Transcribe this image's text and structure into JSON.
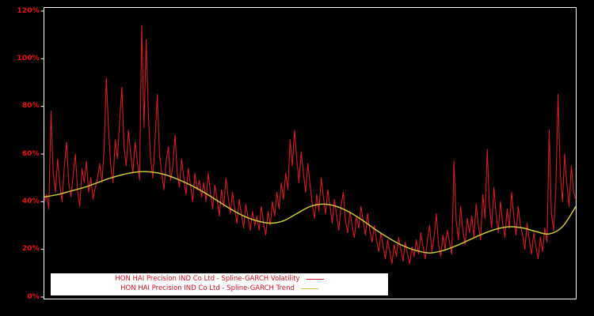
{
  "window": {
    "background": "#000000"
  },
  "chart_data": {
    "type": "line",
    "title": "",
    "xlabel": "",
    "ylabel": "",
    "ylim": [
      0,
      120
    ],
    "grid": false,
    "x_tick_labels": [],
    "y_tick_values": [
      0,
      20,
      40,
      60,
      80,
      100,
      120
    ],
    "y_tick_labels": [
      "0%",
      "20%",
      "40%",
      "60%",
      "80%",
      "100%",
      "120%"
    ],
    "colors": {
      "background": "#000000",
      "plot_border": "#ffffff",
      "axis_label": "#ee1111"
    },
    "legend": {
      "position": "bottom-inside",
      "background": "#ffffff",
      "text_color": "#cc1122"
    },
    "series": [
      {
        "name": "HON HAI Precision IND Co Ltd - Spline-GARCH Volatility",
        "color": "#d41e26",
        "style": "jagged",
        "values": [
          40,
          43,
          37,
          78,
          52,
          44,
          58,
          47,
          40,
          55,
          65,
          48,
          42,
          51,
          60,
          45,
          38,
          54,
          48,
          57,
          44,
          50,
          41,
          46,
          50,
          56,
          48,
          62,
          92,
          70,
          55,
          48,
          66,
          58,
          74,
          88,
          63,
          55,
          70,
          60,
          52,
          65,
          57,
          49,
          114,
          71,
          108,
          76,
          58,
          50,
          66,
          85,
          60,
          52,
          45,
          57,
          63,
          49,
          55,
          68,
          52,
          46,
          58,
          50,
          43,
          54,
          47,
          40,
          52,
          45,
          49,
          42,
          48,
          40,
          52,
          44,
          37,
          47,
          41,
          34,
          45,
          38,
          50,
          42,
          35,
          44,
          37,
          31,
          41,
          35,
          29,
          39,
          33,
          28,
          36,
          30,
          34,
          28,
          38,
          31,
          26,
          36,
          30,
          40,
          34,
          44,
          37,
          48,
          41,
          52,
          45,
          66,
          55,
          70,
          58,
          48,
          61,
          52,
          44,
          56,
          47,
          39,
          33,
          43,
          36,
          50,
          42,
          35,
          45,
          38,
          31,
          41,
          34,
          28,
          38,
          44,
          32,
          27,
          36,
          30,
          25,
          34,
          29,
          38,
          32,
          26,
          35,
          28,
          23,
          30,
          24,
          19,
          27,
          21,
          16,
          24,
          19,
          14,
          22,
          17,
          25,
          20,
          15,
          23,
          18,
          14,
          21,
          17,
          24,
          18,
          27,
          21,
          16,
          24,
          30,
          19,
          25,
          35,
          22,
          17,
          26,
          20,
          28,
          23,
          18,
          57,
          32,
          24,
          38,
          28,
          22,
          33,
          27,
          34,
          25,
          39,
          30,
          24,
          43,
          33,
          62,
          38,
          29,
          46,
          35,
          27,
          40,
          31,
          25,
          37,
          29,
          44,
          34,
          26,
          38,
          30,
          26,
          20,
          31,
          24,
          18,
          27,
          21,
          16,
          25,
          19,
          29,
          23,
          70,
          35,
          28,
          45,
          85,
          52,
          40,
          60,
          47,
          38,
          55,
          44,
          41
        ]
      },
      {
        "name": "HON HAI Precision IND Co Ltd - Spline-GARCH Trend",
        "color": "#cdc63e",
        "style": "smooth",
        "values": [
          42,
          43,
          44.5,
          46,
          48,
          50,
          51.5,
          52.5,
          52.5,
          51.5,
          49.5,
          47,
          44,
          40.5,
          37,
          34,
          32,
          31,
          32,
          35,
          38,
          39,
          38,
          35.5,
          32,
          28,
          24.5,
          21.5,
          19.5,
          18.5,
          19.5,
          21.5,
          24,
          26.5,
          28.5,
          29.5,
          29,
          27.5,
          26.5,
          29.5,
          38
        ]
      }
    ]
  }
}
